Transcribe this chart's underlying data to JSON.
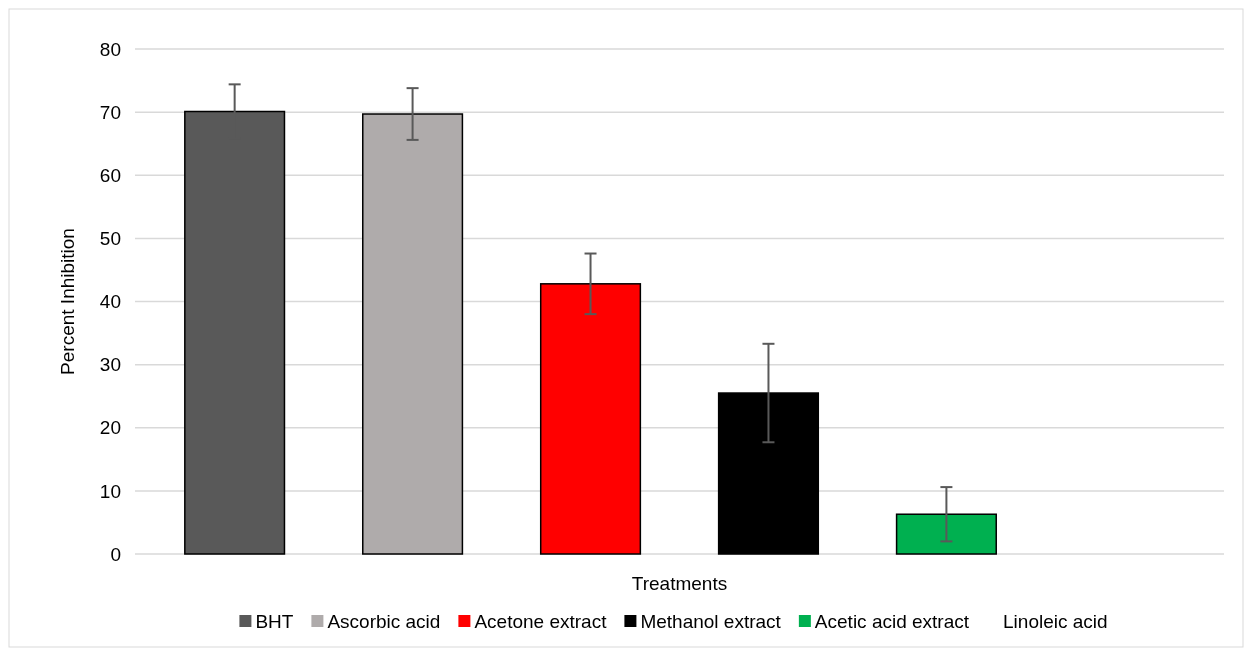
{
  "chart_data": {
    "type": "bar",
    "xlabel": "Treatments",
    "ylabel": "Percent Inhibition",
    "categories": [
      null
    ],
    "series": [
      {
        "name": "BHT",
        "color": "#595959",
        "values": [
          70.1
        ],
        "errors": [
          4.3
        ]
      },
      {
        "name": "Ascorbic acid",
        "color": "#afabab",
        "values": [
          69.7
        ],
        "errors": [
          4.1
        ]
      },
      {
        "name": "Acetone extract",
        "color": "#ff0000",
        "values": [
          42.8
        ],
        "errors": [
          4.8
        ]
      },
      {
        "name": "Methanol extract",
        "color": "#000000",
        "values": [
          25.5
        ],
        "errors": [
          7.8
        ]
      },
      {
        "name": "Acetic acid extract",
        "color": "#00b050",
        "values": [
          6.3
        ],
        "errors": [
          4.3
        ]
      },
      {
        "name": "Linoleic acid",
        "values": [
          0
        ]
      }
    ],
    "ylim": [
      0,
      80
    ],
    "yticks": [
      0,
      10,
      20,
      30,
      40,
      50,
      60,
      70,
      80
    ],
    "grid": "y",
    "legend": "bottom"
  }
}
